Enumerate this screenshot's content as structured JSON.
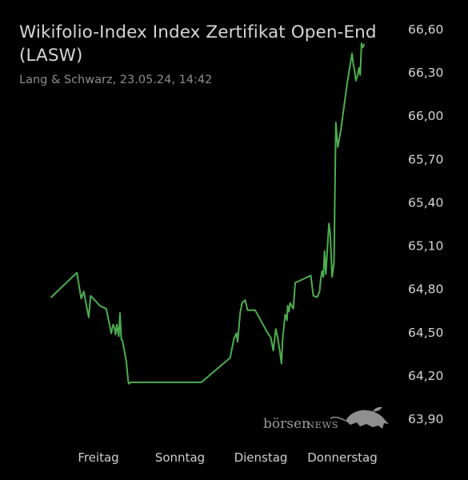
{
  "header": {
    "title_line1": "Wikifolio-Index Index Zertifikat Open-End",
    "title_line2": "(LASW)",
    "subtitle": "Lang & Schwarz, 23.05.24, 14:42"
  },
  "watermark": {
    "text_lower": "börsen",
    "text_caps": "NEWS",
    "icon": "bull-icon"
  },
  "colors": {
    "background": "#000000",
    "line": "#4caf50",
    "axis_text": "#d4d4d4",
    "subtitle_text": "#8e8e8e"
  },
  "chart_data": {
    "type": "line",
    "title": "Wikifolio-Index Index Zertifikat Open-End (LASW)",
    "subtitle": "Lang & Schwarz, 23.05.24, 14:42",
    "xlabel": "",
    "ylabel": "",
    "x_tick_labels": [
      "Freitag",
      "Sonntag",
      "Dienstag",
      "Donnerstag"
    ],
    "x_tick_positions": [
      0.5,
      2.5,
      4.5,
      6.5
    ],
    "xlim": [
      -0.17,
      7.33
    ],
    "y_tick_labels": [
      "66,60",
      "66,30",
      "66,00",
      "65,70",
      "65,40",
      "65,10",
      "64,80",
      "64,50",
      "64,20",
      "63,90"
    ],
    "y_tick_values": [
      66.6,
      66.3,
      66.0,
      65.7,
      65.4,
      65.1,
      64.8,
      64.5,
      64.2,
      63.9
    ],
    "ylim": [
      63.9,
      66.6
    ],
    "y_axis_position": "right",
    "grid": false,
    "legend": "none",
    "series": [
      {
        "values": [
          [
            0.0,
            64.74
          ],
          [
            0.41,
            64.91
          ],
          [
            0.48,
            64.73
          ],
          [
            0.52,
            64.78
          ],
          [
            0.6,
            64.6
          ],
          [
            0.63,
            64.75
          ],
          [
            0.78,
            64.68
          ],
          [
            0.88,
            64.66
          ],
          [
            0.96,
            64.49
          ],
          [
            0.99,
            64.55
          ],
          [
            1.01,
            64.53
          ],
          [
            1.03,
            64.48
          ],
          [
            1.05,
            64.55
          ],
          [
            1.08,
            64.47
          ],
          [
            1.1,
            64.63
          ],
          [
            1.12,
            64.45
          ],
          [
            1.14,
            64.44
          ],
          [
            1.2,
            64.3
          ],
          [
            1.23,
            64.16
          ],
          [
            1.24,
            64.14
          ],
          [
            1.27,
            64.15
          ],
          [
            2.4,
            64.15
          ],
          [
            2.86,
            64.32
          ],
          [
            2.92,
            64.45
          ],
          [
            2.96,
            64.49
          ],
          [
            2.98,
            64.43
          ],
          [
            3.02,
            64.63
          ],
          [
            3.05,
            64.7
          ],
          [
            3.1,
            64.72
          ],
          [
            3.14,
            64.65
          ],
          [
            3.26,
            64.65
          ],
          [
            3.45,
            64.5
          ],
          [
            3.51,
            64.46
          ],
          [
            3.55,
            64.37
          ],
          [
            3.59,
            64.52
          ],
          [
            3.62,
            64.46
          ],
          [
            3.66,
            64.35
          ],
          [
            3.68,
            64.28
          ],
          [
            3.7,
            64.45
          ],
          [
            3.74,
            64.62
          ],
          [
            3.77,
            64.58
          ],
          [
            3.78,
            64.68
          ],
          [
            3.8,
            64.64
          ],
          [
            3.82,
            64.7
          ],
          [
            3.87,
            64.66
          ],
          [
            3.9,
            64.84
          ],
          [
            4.15,
            64.89
          ],
          [
            4.19,
            64.75
          ],
          [
            4.25,
            64.74
          ],
          [
            4.29,
            64.78
          ],
          [
            4.31,
            64.87
          ],
          [
            4.33,
            64.92
          ],
          [
            4.35,
            64.88
          ],
          [
            4.37,
            65.06
          ],
          [
            4.39,
            64.9
          ],
          [
            4.42,
            65.11
          ],
          [
            4.44,
            65.25
          ],
          [
            4.46,
            65.18
          ],
          [
            4.49,
            64.88
          ],
          [
            4.52,
            64.98
          ],
          [
            4.55,
            65.95
          ],
          [
            4.58,
            65.78
          ],
          [
            4.63,
            65.9
          ],
          [
            4.73,
            66.22
          ],
          [
            4.81,
            66.43
          ],
          [
            4.83,
            66.35
          ],
          [
            4.85,
            66.31
          ],
          [
            4.87,
            66.24
          ],
          [
            4.9,
            66.28
          ],
          [
            4.92,
            66.33
          ],
          [
            4.94,
            66.28
          ],
          [
            4.96,
            66.5
          ],
          [
            4.98,
            66.47
          ],
          [
            5.0,
            66.49
          ]
        ]
      }
    ]
  }
}
